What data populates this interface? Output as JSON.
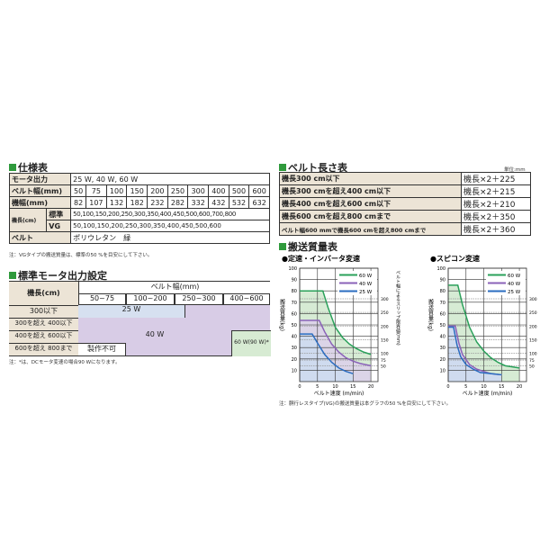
{
  "spec": {
    "title": "仕様表",
    "rows": [
      {
        "label": "モータ出力",
        "value": "25 W, 40 W, 60 W"
      },
      {
        "label": "ベルト幅(mm)",
        "values": [
          "50",
          "75",
          "100",
          "150",
          "200",
          "250",
          "300",
          "400",
          "500",
          "600"
        ]
      },
      {
        "label": "機幅(mm)",
        "values": [
          "82",
          "107",
          "132",
          "182",
          "232",
          "282",
          "332",
          "432",
          "532",
          "632"
        ]
      }
    ],
    "length_label": "機長(cm)",
    "standard_label": "標準",
    "standard_value": "50,100,150,200,250,300,350,400,450,500,600,700,800",
    "vg_label": "VG",
    "vg_value": "50,100,150,200,250,300,350,400,450,500,600",
    "belt_label": "ベルト",
    "belt_value": "ポリウレタン　緑",
    "note": "注：VGタイプの搬送質量は、標準の50 %を目安にして下さい。"
  },
  "motor": {
    "title": "標準モータ出力設定",
    "length_label": "機長(cm)",
    "width_label": "ベルト幅(mm)",
    "cols": [
      "50~75",
      "100~200",
      "250~300",
      "400~600"
    ],
    "rows": [
      "300以下",
      "300を超え 400以下",
      "400を超え 600以下",
      "600を超え 800まで"
    ],
    "w25": "25 W",
    "w40": "40 W",
    "w60": "60 W(90 W)*",
    "impossible": "製作不可",
    "note": "注：*は、DCモータ変速の場合90 Wになります。"
  },
  "belt_length": {
    "title": "ベルト長さ表",
    "unit": "単位:mm",
    "rows": [
      {
        "cond": "機長300 cm以下",
        "formula": "機長×2＋225"
      },
      {
        "cond": "機長300 cmを超え400 cm以下",
        "formula": "機長×2＋215"
      },
      {
        "cond": "機長400 cmを超え600 cm以下",
        "formula": "機長×2＋210"
      },
      {
        "cond": "機長600 cmを超え800 cmまで",
        "formula": "機長×2＋350"
      },
      {
        "cond": "ベルト幅600 mmで機長600 cmを超え800 cmまで",
        "formula": "機長×2＋360"
      }
    ]
  },
  "transport": {
    "title": "搬送質量表",
    "note": "注：胴行レスタイプ(VG)の搬送質量は本グラフの50 %を目安にして下さい。"
  },
  "chart_data": [
    {
      "type": "line",
      "title": "●定速・インバータ変速",
      "xlabel": "ベルト速度 (m/min)",
      "ylabel": "搬送質量(kg)",
      "y2label": "ベルト幅によるスリップ限界値(mm)",
      "xlim": [
        0,
        22
      ],
      "ylim": [
        0,
        100
      ],
      "xticks": [
        0,
        5,
        10,
        15,
        20
      ],
      "yticks": [
        10,
        20,
        30,
        40,
        50,
        60,
        70,
        80,
        90,
        100
      ],
      "y2ticks": [
        {
          "label": "300",
          "y": 73
        },
        {
          "label": "250",
          "y": 61
        },
        {
          "label": "200",
          "y": 49
        },
        {
          "label": "150",
          "y": 37
        },
        {
          "label": "100",
          "y": 25
        },
        {
          "label": "75",
          "y": 19
        },
        {
          "label": "50",
          "y": 14
        }
      ],
      "series": [
        {
          "name": "60 W",
          "color": "#2aa05a",
          "fill": "#cfe7cc",
          "points": [
            [
              0,
              80
            ],
            [
              6.5,
              80
            ],
            [
              8,
              65
            ],
            [
              10,
              48
            ],
            [
              12,
              39
            ],
            [
              14,
              33
            ],
            [
              16,
              29
            ],
            [
              18,
              26
            ],
            [
              20,
              24
            ]
          ]
        },
        {
          "name": "40 W",
          "color": "#8a62b8",
          "fill": "#dcd0ea",
          "points": [
            [
              0,
              54
            ],
            [
              5.5,
              54
            ],
            [
              7,
              44
            ],
            [
              9,
              33
            ],
            [
              11,
              26
            ],
            [
              13,
              21
            ],
            [
              15,
              18
            ],
            [
              17,
              16
            ],
            [
              20,
              14
            ]
          ]
        },
        {
          "name": "25 W",
          "color": "#2a6cc0",
          "fill": "#cddcf0",
          "points": [
            [
              0,
              42
            ],
            [
              3.5,
              42
            ],
            [
              5,
              34
            ],
            [
              7,
              24
            ],
            [
              9,
              17
            ],
            [
              11,
              12
            ],
            [
              13,
              9
            ],
            [
              15,
              7
            ]
          ]
        }
      ]
    },
    {
      "type": "line",
      "title": "●スピコン変速",
      "xlabel": "ベルト速度 (m/min)",
      "ylabel": "搬送質量(kg)",
      "y2label": "ベルト幅によるスリップ限界値(mm)",
      "xlim": [
        0,
        22
      ],
      "ylim": [
        0,
        100
      ],
      "xticks": [
        0,
        5,
        10,
        15,
        20
      ],
      "yticks": [
        10,
        20,
        30,
        40,
        50,
        60,
        70,
        80,
        90,
        100
      ],
      "y2ticks": [
        {
          "label": "300",
          "y": 73
        },
        {
          "label": "250",
          "y": 61
        },
        {
          "label": "200",
          "y": 49
        },
        {
          "label": "150",
          "y": 37
        },
        {
          "label": "100",
          "y": 25
        },
        {
          "label": "75",
          "y": 19
        },
        {
          "label": "50",
          "y": 14
        }
      ],
      "series": [
        {
          "name": "60 W",
          "color": "#2aa05a",
          "fill": "#cfe7cc",
          "points": [
            [
              0,
              85
            ],
            [
              2.7,
              85
            ],
            [
              4,
              68
            ],
            [
              6,
              48
            ],
            [
              8,
              35
            ],
            [
              10,
              27
            ],
            [
              12,
              21
            ],
            [
              14,
              17
            ],
            [
              16,
              14
            ],
            [
              18,
              13
            ],
            [
              20,
              12
            ]
          ]
        },
        {
          "name": "40 W",
          "color": "#8a62b8",
          "fill": "#dcd0ea",
          "points": [
            [
              0,
              49
            ],
            [
              2,
              49
            ],
            [
              3,
              34
            ],
            [
              4,
              24
            ],
            [
              6,
              15
            ],
            [
              8,
              11
            ],
            [
              10,
              9
            ],
            [
              12,
              7
            ],
            [
              15,
              6
            ]
          ]
        },
        {
          "name": "25 W",
          "color": "#2a6cc0",
          "fill": "#cddcf0",
          "points": [
            [
              0,
              48
            ],
            [
              1.5,
              48
            ],
            [
              2.5,
              32
            ],
            [
              3.5,
              22
            ],
            [
              5,
              15
            ],
            [
              7,
              11
            ],
            [
              9,
              8
            ],
            [
              12,
              7
            ],
            [
              15,
              6
            ]
          ]
        }
      ]
    }
  ]
}
